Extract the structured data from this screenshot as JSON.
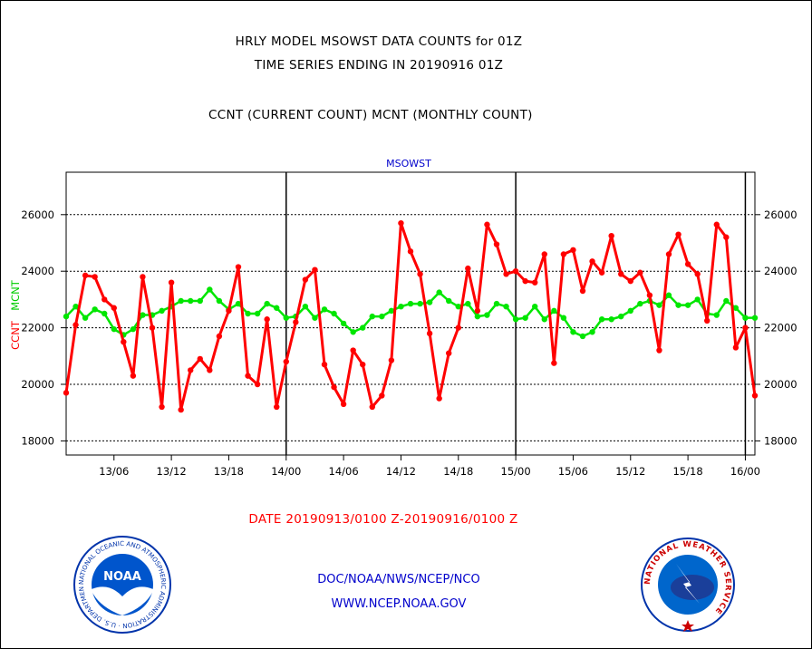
{
  "header": {
    "line1": "HRLY MODEL MSOWST DATA COUNTS for 01Z",
    "line2": "TIME SERIES ENDING IN 20190916 01Z",
    "line3": "CCNT (CURRENT COUNT) MCNT (MONTHLY COUNT)"
  },
  "footer": {
    "date_range": "DATE 20190913/0100 Z-20190916/0100 Z",
    "credit1": "DOC/NOAA/NWS/NCEP/NCO",
    "credit2": "WWW.NCEP.NOAA.GOV"
  },
  "logos": {
    "noaa_text": "NOAA",
    "noaa_ring": "NATIONAL OCEANIC AND ATMOSPHERIC ADMINISTRATION · U.S. DEPARTMENT OF COMMERCE ·",
    "nws_ring": "NATIONAL WEATHER SERVICE"
  },
  "chart_data": {
    "type": "line",
    "plot_label": "MSOWST",
    "ylabel_left_ccnt": "CCNT",
    "ylabel_left_mcnt": "MCNT",
    "ylim": [
      17500,
      27500
    ],
    "yticks": [
      18000,
      20000,
      22000,
      24000,
      26000
    ],
    "ytick_labels": [
      "18000",
      "20000",
      "22000",
      "24000",
      "26000"
    ],
    "xlim": [
      1,
      73
    ],
    "xticks": [
      6,
      12,
      18,
      24,
      30,
      36,
      42,
      48,
      54,
      60,
      66,
      72
    ],
    "xtick_labels": [
      "13/06",
      "13/12",
      "13/18",
      "14/00",
      "14/06",
      "14/12",
      "14/18",
      "15/00",
      "15/06",
      "15/12",
      "15/18",
      "16/00"
    ],
    "day_boundaries": [
      24,
      48,
      72
    ],
    "grid": true,
    "colors": {
      "ccnt": "#ff0000",
      "mcnt": "#00e600",
      "axis_title": "#0000cc"
    },
    "series": [
      {
        "name": "CCNT",
        "values": [
          19700,
          22100,
          23850,
          23800,
          23000,
          22700,
          21500,
          20300,
          23800,
          22000,
          19200,
          23600,
          19100,
          20500,
          20900,
          20500,
          21700,
          22600,
          24150,
          20300,
          20000,
          22300,
          19200,
          20800,
          22200,
          23700,
          24050,
          20700,
          19900,
          19300,
          21200,
          20700,
          19200,
          19600,
          20850,
          25700,
          24700,
          23900,
          21800,
          19500,
          21100,
          22000,
          24100,
          22600,
          25650,
          24950,
          23900,
          24000,
          23650,
          23600,
          24600,
          20750,
          24600,
          24750,
          23300,
          24350,
          23950,
          25250,
          23900,
          23650,
          23950,
          23150,
          21200,
          24600,
          25300,
          24250,
          23900,
          22250,
          25650,
          25200,
          21300,
          22000,
          19600
        ]
      },
      {
        "name": "MCNT",
        "values": [
          22400,
          22750,
          22350,
          22650,
          22500,
          21950,
          21750,
          21950,
          22450,
          22450,
          22600,
          22750,
          22950,
          22950,
          22950,
          23350,
          22950,
          22650,
          22850,
          22500,
          22500,
          22850,
          22700,
          22350,
          22400,
          22750,
          22350,
          22650,
          22500,
          22150,
          21850,
          22000,
          22400,
          22400,
          22600,
          22750,
          22850,
          22850,
          22900,
          23250,
          22950,
          22750,
          22850,
          22400,
          22450,
          22850,
          22750,
          22300,
          22350,
          22750,
          22300,
          22600,
          22350,
          21850,
          21700,
          21850,
          22300,
          22300,
          22400,
          22600,
          22850,
          22950,
          22800,
          23150,
          22800,
          22800,
          23000,
          22500,
          22450,
          22950,
          22700,
          22350,
          22350
        ]
      }
    ]
  }
}
